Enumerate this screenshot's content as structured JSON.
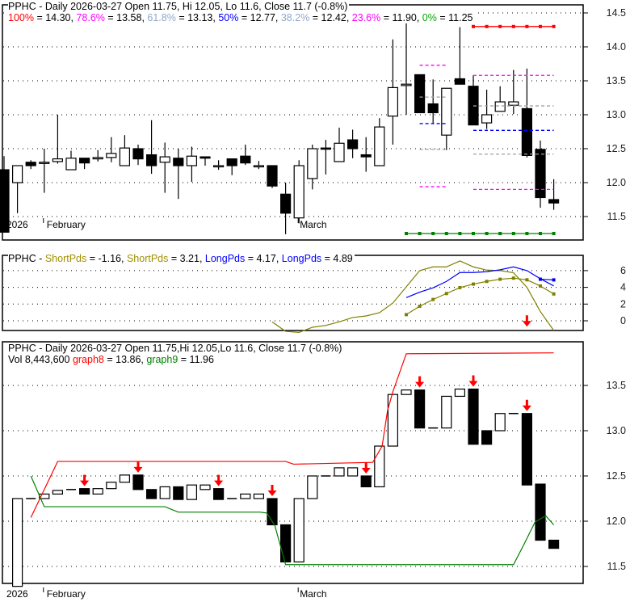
{
  "colors": {
    "up": "#ffffff",
    "down": "#000000",
    "fib100": "#ff0000",
    "fib786": "#ff00ff",
    "fib618": "#a0a0a0",
    "fib50": "#0000ff",
    "fib382": "#a0a0a0",
    "fib236": "#ff00ff",
    "fib0": "#008000",
    "short": "#808000",
    "long": "#0000ff",
    "graph8": "#ff0000",
    "graph9": "#008000",
    "arrow": "#ff0000"
  },
  "header": {
    "main": "PPHC - Daily 2026-03-27 Open 11.75, Hi 12.05, Lo 11.6, Close 11.7 (-0.8%)",
    "fib": [
      {
        "label": "100%",
        "value": " = 14.30, ",
        "color": "#ff0000"
      },
      {
        "label": "78.6%",
        "value": " = 13.58, ",
        "color": "#ff00ff"
      },
      {
        "label": "61.8%",
        "value": " = 13.13, ",
        "color": "#8fa8cc"
      },
      {
        "label": "50%",
        "value": " = 12.77, ",
        "color": "#0000ff"
      },
      {
        "label": "38.2%",
        "value": " = 12.42, ",
        "color": "#8fa8cc"
      },
      {
        "label": "23.6%",
        "value": " = 11.90, ",
        "color": "#ff00ff"
      },
      {
        "label": "0%",
        "value": " = 11.25",
        "color": "#00aa00"
      }
    ],
    "mid_prefix": "PPHC - ",
    "mid": [
      {
        "label": "ShortPds",
        "value": " = -1.16, ",
        "color": "#a09000"
      },
      {
        "label": "ShortPds",
        "value": " = 3.21, ",
        "color": "#a09000"
      },
      {
        "label": "LongPds",
        "value": " = 4.17, ",
        "color": "#0000ff"
      },
      {
        "label": "LongPds",
        "value": " = 4.89",
        "color": "#0000ff"
      }
    ],
    "bottom": "PPHC - Daily 2026-03-27 Open 11.75,Hi 12.05,Lo 11.6, Close 11.7 (-0.8%)",
    "vol": "Vol 8,443,600 ",
    "bottom_series": [
      {
        "label": "graph8",
        "value": " = 13.86, ",
        "color": "#ff0000"
      },
      {
        "label": "graph9",
        "value": " = 11.96",
        "color": "#008000"
      }
    ]
  },
  "x_labels": [
    {
      "text": "2026",
      "index": 0
    },
    {
      "text": "February",
      "index": 3
    },
    {
      "text": "March",
      "index": 22
    }
  ],
  "chart_data": [
    {
      "type": "candlestick",
      "ylim": [
        11.2,
        14.6
      ],
      "yticks": [
        11.5,
        12.0,
        12.5,
        13.0,
        13.5,
        14.0,
        14.5
      ],
      "ytick_labels": [
        "11.5",
        "12.0",
        "12.5",
        "13.0",
        "13.5",
        "14.0",
        "14.5"
      ],
      "grid": true,
      "ohlc": [
        [
          12.19,
          12.39,
          11.27,
          11.27
        ],
        [
          12.0,
          12.25,
          11.55,
          12.25
        ],
        [
          12.3,
          12.33,
          12.2,
          12.25
        ],
        [
          12.3,
          12.5,
          11.85,
          12.3
        ],
        [
          12.31,
          13.0,
          12.28,
          12.35
        ],
        [
          12.19,
          12.47,
          12.19,
          12.36
        ],
        [
          12.36,
          12.36,
          12.2,
          12.29
        ],
        [
          12.35,
          12.48,
          12.31,
          12.37
        ],
        [
          12.37,
          12.67,
          12.3,
          12.43
        ],
        [
          12.25,
          12.7,
          12.25,
          12.51
        ],
        [
          12.5,
          12.56,
          12.26,
          12.35
        ],
        [
          12.41,
          12.92,
          12.13,
          12.25
        ],
        [
          12.3,
          12.59,
          11.85,
          12.38
        ],
        [
          12.36,
          12.5,
          11.76,
          12.25
        ],
        [
          12.25,
          12.53,
          12.01,
          12.39
        ],
        [
          12.38,
          12.38,
          12.25,
          12.36
        ],
        [
          12.25,
          12.33,
          12.19,
          12.25
        ],
        [
          12.35,
          12.35,
          12.11,
          12.25
        ],
        [
          12.39,
          12.56,
          12.26,
          12.29
        ],
        [
          12.25,
          12.32,
          12.2,
          12.25
        ],
        [
          12.25,
          12.25,
          11.92,
          11.95
        ],
        [
          11.83,
          12.0,
          11.24,
          11.55
        ],
        [
          11.48,
          12.33,
          11.4,
          12.25
        ],
        [
          12.06,
          12.56,
          11.9,
          12.5
        ],
        [
          12.51,
          12.63,
          12.12,
          12.5
        ],
        [
          12.31,
          12.81,
          12.31,
          12.58
        ],
        [
          12.63,
          12.78,
          12.36,
          12.5
        ],
        [
          12.41,
          12.67,
          12.16,
          12.38
        ],
        [
          12.25,
          12.95,
          12.25,
          12.82
        ],
        [
          12.98,
          14.11,
          12.56,
          13.4
        ],
        [
          13.43,
          14.4,
          13.0,
          13.45
        ],
        [
          13.59,
          13.59,
          13.03,
          13.03
        ],
        [
          13.16,
          13.52,
          12.87,
          13.03
        ],
        [
          12.7,
          13.39,
          12.48,
          13.39
        ],
        [
          13.53,
          14.29,
          13.45,
          13.45
        ],
        [
          13.42,
          13.58,
          12.85,
          12.85
        ],
        [
          12.88,
          13.37,
          12.79,
          13.0
        ],
        [
          13.05,
          13.42,
          13.05,
          13.19
        ],
        [
          13.14,
          13.66,
          13.01,
          13.19
        ],
        [
          13.09,
          13.68,
          12.37,
          12.4
        ],
        [
          12.49,
          12.62,
          11.63,
          11.78
        ],
        [
          11.75,
          12.05,
          11.6,
          11.7
        ]
      ],
      "fib_lines": [
        {
          "level": "78.6%",
          "value": 13.73,
          "from": 31,
          "to": 33,
          "color": "#ff00ff",
          "style": "dashed"
        },
        {
          "level": "61.8%",
          "value": 13.26,
          "from": 31,
          "to": 33,
          "color": "#a0a0a0",
          "style": "dashed"
        },
        {
          "level": "50%",
          "value": 12.87,
          "from": 31,
          "to": 33,
          "color": "#0000ff",
          "style": "dashed"
        },
        {
          "level": "38.2%",
          "value": 12.49,
          "from": 31,
          "to": 33,
          "color": "#a0a0a0",
          "style": "dashed"
        },
        {
          "level": "23.6%",
          "value": 11.94,
          "from": 31,
          "to": 33,
          "color": "#ff00ff",
          "style": "dashed"
        },
        {
          "level": "100%",
          "value": 14.3,
          "from": 35,
          "to": 41,
          "color": "#ff0000",
          "style": "marked"
        },
        {
          "level": "78.6%",
          "value": 13.58,
          "from": 35,
          "to": 41,
          "color": "#ff00ff",
          "style": "dashed"
        },
        {
          "level": "61.8%",
          "value": 13.13,
          "from": 35,
          "to": 41,
          "color": "#a0a0a0",
          "style": "dashed"
        },
        {
          "level": "50%",
          "value": 12.77,
          "from": 35,
          "to": 41,
          "color": "#0000ff",
          "style": "dashed"
        },
        {
          "level": "38.2%",
          "value": 12.42,
          "from": 35,
          "to": 41,
          "color": "#a0a0a0",
          "style": "dashed"
        },
        {
          "level": "23.6%",
          "value": 11.9,
          "from": 35,
          "to": 41,
          "color": "#ff00ff",
          "style": "dashed"
        },
        {
          "level": "0%",
          "value": 11.25,
          "from": 30,
          "to": 41,
          "color": "#008000",
          "style": "marked"
        }
      ]
    },
    {
      "type": "line",
      "ylim": [
        -1.8,
        7.6
      ],
      "yticks": [
        0,
        2,
        4,
        6
      ],
      "ytick_labels": [
        "0",
        "2",
        "4",
        "6"
      ],
      "grid": true,
      "series": [
        {
          "name": "ShortPds",
          "start": 20,
          "color": "#808000",
          "markers": false,
          "values": [
            -0.13,
            -1.26,
            -1.39,
            -0.77,
            -0.55,
            -0.13,
            0.39,
            0.58,
            0.97,
            2.13,
            4.06,
            6.0,
            6.45,
            6.45,
            7.16,
            6.45,
            6.06,
            6.0,
            5.74,
            4.0,
            1.1,
            -1.16
          ]
        },
        {
          "name": "ShortPds",
          "start": 30,
          "color": "#808000",
          "markers": true,
          "values": [
            0.74,
            1.74,
            2.55,
            3.26,
            3.97,
            4.39,
            4.71,
            4.97,
            5.1,
            4.9,
            4.16,
            3.21
          ]
        },
        {
          "name": "LongPds",
          "start": 30,
          "color": "#0000ff",
          "markers": false,
          "values": [
            2.77,
            3.42,
            3.94,
            4.71,
            5.77,
            5.77,
            5.87,
            6.1,
            6.45,
            6.0,
            5.03,
            4.17
          ]
        },
        {
          "name": "LongPds",
          "start": 40,
          "color": "#0000ff",
          "markers": true,
          "values": [
            4.97,
            4.89
          ]
        }
      ],
      "arrows": [
        39
      ]
    },
    {
      "type": "bar",
      "ylim": [
        11.2,
        14.0
      ],
      "yticks": [
        11.5,
        12.0,
        12.5,
        13.0,
        13.5
      ],
      "ytick_labels": [
        "11.5",
        "12.0",
        "12.5",
        "13.0",
        "13.5"
      ],
      "grid": true,
      "bodies_start": 1,
      "bodies": [
        [
          11.28,
          12.25
        ],
        [
          12.25,
          12.25
        ],
        [
          12.25,
          12.3
        ],
        [
          12.3,
          12.34
        ],
        [
          12.35,
          12.35
        ],
        [
          12.36,
          12.3
        ],
        [
          12.3,
          12.36
        ],
        [
          12.36,
          12.43
        ],
        [
          12.43,
          12.51
        ],
        [
          12.51,
          12.35
        ],
        [
          12.35,
          12.25
        ],
        [
          12.25,
          12.38
        ],
        [
          12.38,
          12.24
        ],
        [
          12.24,
          12.4
        ],
        [
          12.35,
          12.4
        ],
        [
          12.36,
          12.24
        ],
        [
          12.25,
          12.25
        ],
        [
          12.25,
          12.3
        ],
        [
          12.25,
          12.3
        ],
        [
          12.25,
          11.96
        ],
        [
          11.96,
          11.55
        ],
        [
          11.55,
          12.25
        ],
        [
          12.25,
          12.5
        ],
        [
          12.5,
          12.5
        ],
        [
          12.5,
          12.59
        ],
        [
          12.5,
          12.59
        ],
        [
          12.5,
          12.38
        ],
        [
          12.38,
          12.83
        ],
        [
          12.83,
          13.4
        ],
        [
          13.4,
          13.45
        ],
        [
          13.45,
          13.03
        ],
        [
          13.03,
          13.03
        ],
        [
          13.03,
          13.38
        ],
        [
          13.38,
          13.46
        ],
        [
          13.46,
          12.85
        ],
        [
          13.0,
          12.85
        ],
        [
          13.0,
          13.19
        ],
        [
          13.19,
          13.19
        ],
        [
          13.19,
          12.4
        ],
        [
          12.41,
          11.79
        ],
        [
          11.79,
          11.7
        ]
      ],
      "series": [
        {
          "name": "graph8",
          "color": "#ff0000",
          "points": [
            [
              2,
              12.04
            ],
            [
              4,
              12.66
            ],
            [
              21,
              12.66
            ],
            [
              21.6,
              12.63
            ],
            [
              27.5,
              12.65
            ],
            [
              28.2,
              12.83
            ],
            [
              28.6,
              13.22
            ],
            [
              29.0,
              13.43
            ],
            [
              30,
              13.85
            ],
            [
              41,
              13.86
            ]
          ]
        },
        {
          "name": "graph9",
          "color": "#008000",
          "points": [
            [
              2,
              12.5
            ],
            [
              3,
              12.16
            ],
            [
              12,
              12.16
            ],
            [
              13,
              12.1
            ],
            [
              19.1,
              12.1
            ],
            [
              19.6,
              12.09
            ],
            [
              20.2,
              11.95
            ],
            [
              21,
              11.52
            ],
            [
              38,
              11.52
            ],
            [
              38.8,
              11.75
            ],
            [
              39.6,
              11.99
            ],
            [
              40.4,
              12.06
            ],
            [
              41,
              11.96
            ]
          ]
        }
      ],
      "arrows": [
        6,
        10,
        16,
        20,
        27,
        31,
        35,
        39
      ]
    }
  ]
}
